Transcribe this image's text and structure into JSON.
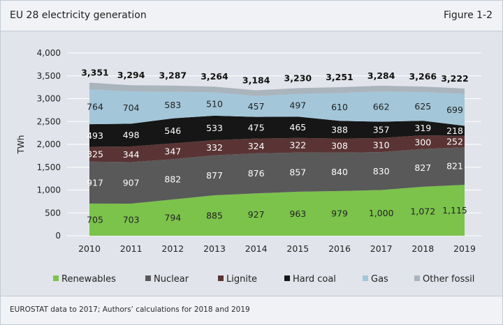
{
  "header": {
    "title": "EU 28 electricity generation",
    "figure_label": "Figure 1-2"
  },
  "footer": {
    "source": "EUROSTAT data to 2017; Authors’ calculations for 2018 and 2019"
  },
  "chart_data": {
    "type": "area",
    "stacked": true,
    "title": "EU 28 electricity generation",
    "ylabel": "TWh",
    "xlabel": "",
    "ylim": [
      0,
      4000
    ],
    "yticks": [
      0,
      500,
      1000,
      1500,
      2000,
      2500,
      3000,
      3500,
      4000
    ],
    "ytick_labels": [
      "0",
      "500",
      "1,000",
      "1,500",
      "2,000",
      "2,500",
      "3,000",
      "3,500",
      "4,000"
    ],
    "categories": [
      "2010",
      "2011",
      "2012",
      "2013",
      "2014",
      "2015",
      "2016",
      "2017",
      "2018",
      "2019"
    ],
    "grid": true,
    "legend_position": "bottom",
    "series": [
      {
        "name": "Renewables",
        "color": "#7cc34c",
        "label_color": "#222222",
        "values": [
          705,
          703,
          794,
          885,
          927,
          963,
          979,
          1000,
          1072,
          1115
        ],
        "labels": [
          "705",
          "703",
          "794",
          "885",
          "927",
          "963",
          "979",
          "1,000",
          "1,072",
          "1,115"
        ]
      },
      {
        "name": "Nuclear",
        "color": "#595959",
        "label_color": "#ffffff",
        "values": [
          917,
          907,
          882,
          877,
          876,
          857,
          840,
          830,
          827,
          821
        ],
        "labels": [
          "917",
          "907",
          "882",
          "877",
          "876",
          "857",
          "840",
          "830",
          "827",
          "821"
        ]
      },
      {
        "name": "Lignite",
        "color": "#5a3434",
        "label_color": "#ffffff",
        "values": [
          325,
          344,
          347,
          332,
          324,
          322,
          308,
          310,
          300,
          252
        ],
        "labels": [
          "325",
          "344",
          "347",
          "332",
          "324",
          "322",
          "308",
          "310",
          "300",
          "252"
        ]
      },
      {
        "name": "Hard coal",
        "color": "#161616",
        "label_color": "#ffffff",
        "values": [
          493,
          498,
          546,
          533,
          475,
          465,
          388,
          357,
          319,
          218
        ],
        "labels": [
          "493",
          "498",
          "546",
          "533",
          "475",
          "465",
          "388",
          "357",
          "319",
          "218"
        ]
      },
      {
        "name": "Gas",
        "color": "#a3c6d9",
        "label_color": "#222222",
        "values": [
          764,
          704,
          583,
          510,
          457,
          497,
          610,
          662,
          625,
          699
        ],
        "labels": [
          "764",
          "704",
          "583",
          "510",
          "457",
          "497",
          "610",
          "662",
          "625",
          "699"
        ]
      },
      {
        "name": "Other fossil",
        "color": "#aab4bd",
        "values": [
          147,
          138,
          135,
          127,
          125,
          126,
          126,
          125,
          123,
          117
        ]
      }
    ],
    "totals": [
      3351,
      3294,
      3287,
      3264,
      3184,
      3230,
      3251,
      3284,
      3266,
      3222
    ],
    "total_labels": [
      "3,351",
      "3,294",
      "3,287",
      "3,264",
      "3,184",
      "3,230",
      "3,251",
      "3,284",
      "3,266",
      "3,222"
    ]
  }
}
